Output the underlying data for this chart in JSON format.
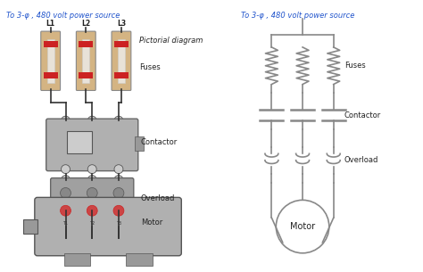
{
  "bg_color": "#ffffff",
  "line_color": "#888888",
  "dark_line": "#333333",
  "blue_text": "#2255cc",
  "black_text": "#222222",
  "gray_text": "#444444",
  "fuse_fill": "#d4b483",
  "contactor_fill": "#b0b0b0",
  "overload_fill": "#a0a0a0",
  "motor_fill": "#b0b0b0",
  "title_left": "To 3-φ , 480 volt power source",
  "title_right": "To 3-φ , 480 volt power source",
  "label_pictorial": "Pictorial diagram",
  "label_fuses_left": "Fuses",
  "label_fuses_right": "Fuses",
  "label_contactor_left": "Contactor",
  "label_contactor_right": "Contactor",
  "label_overload_left": "Overload",
  "label_overload_right": "Overload",
  "label_motor_left": "Motor",
  "label_motor_right": "Motor",
  "label_L1": "L1",
  "label_L2": "L2",
  "label_L3": "L3",
  "label_T1": "T1",
  "label_T2": "T2",
  "label_T3": "T3"
}
